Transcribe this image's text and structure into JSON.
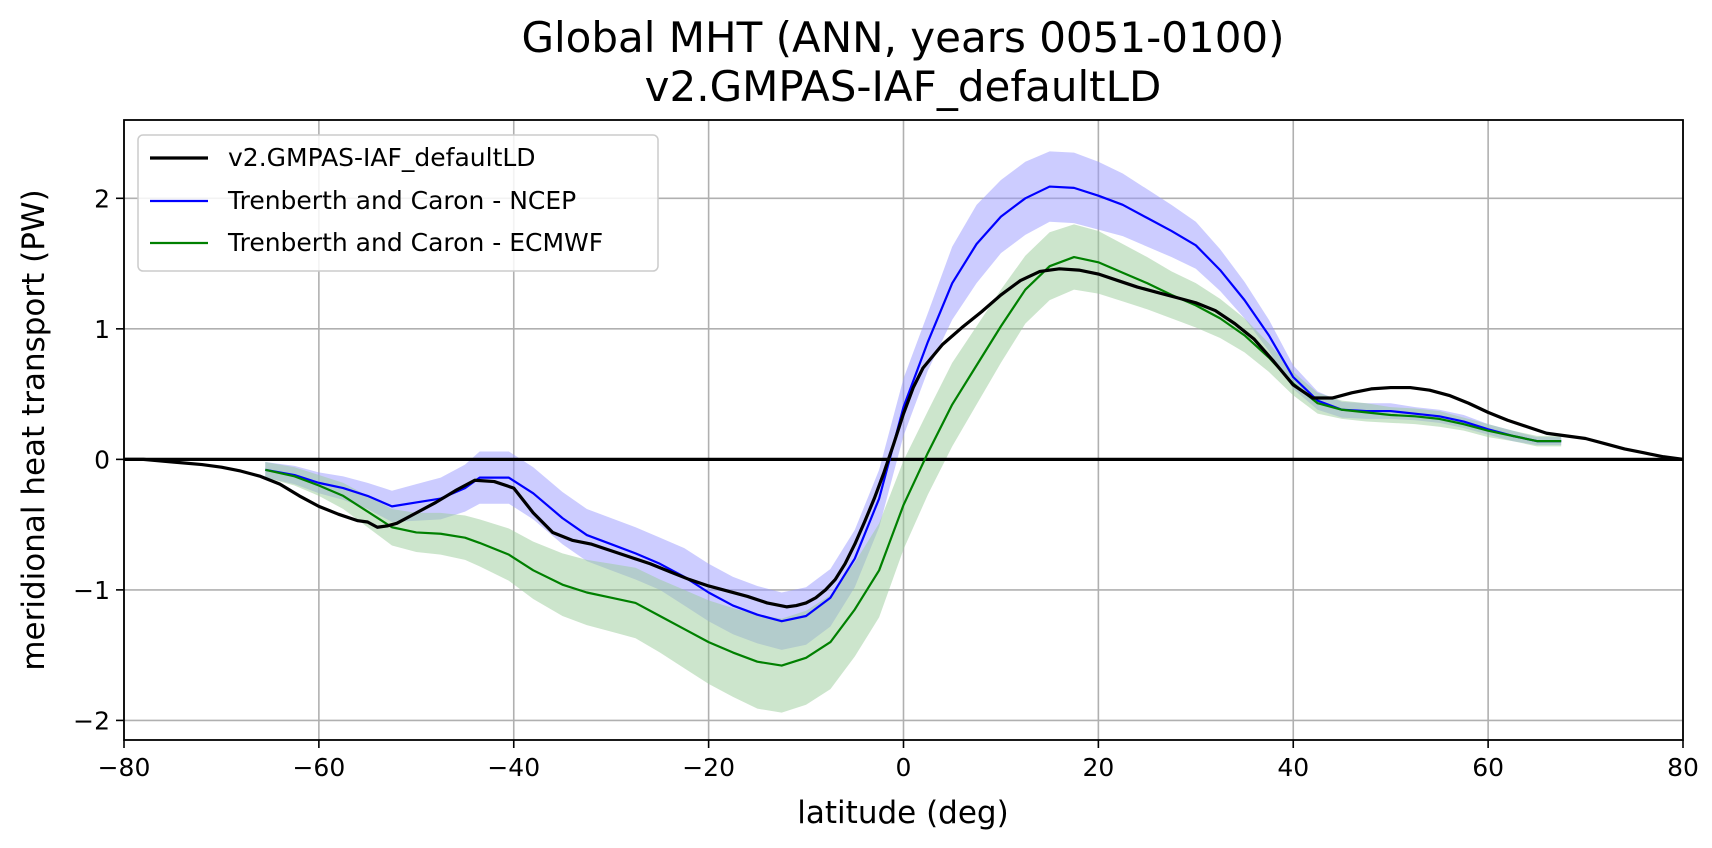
{
  "chart_data": {
    "type": "line",
    "title_line1": "Global MHT (ANN, years 0051-0100)",
    "title_line2": "v2.GMPAS-IAF_defaultLD",
    "xlabel": "latitude (deg)",
    "ylabel": "meridional heat transport (PW)",
    "xlim": [
      -80,
      80
    ],
    "ylim": [
      -2.15,
      2.6
    ],
    "xticks": [
      -80,
      -60,
      -40,
      -20,
      0,
      20,
      40,
      60,
      80
    ],
    "xtick_labels": [
      "−80",
      "−60",
      "−40",
      "−20",
      "0",
      "20",
      "40",
      "60",
      "80"
    ],
    "yticks": [
      -2,
      -1,
      0,
      1,
      2
    ],
    "ytick_labels": [
      "−2",
      "−1",
      "0",
      "1",
      "2"
    ],
    "grid": true,
    "legend_position": "upper-left",
    "series": [
      {
        "name": "v2.GMPAS-IAF_defaultLD",
        "color": "#000000",
        "x": [
          -80,
          -78,
          -75,
          -72,
          -70,
          -68,
          -66,
          -64,
          -62,
          -60,
          -58,
          -56,
          -55,
          -54,
          -53,
          -52,
          -50,
          -48,
          -46,
          -44,
          -42,
          -40,
          -38,
          -36,
          -34,
          -32,
          -30,
          -28,
          -26,
          -24,
          -22,
          -20,
          -18,
          -16,
          -14,
          -12,
          -11,
          -10,
          -9,
          -8,
          -7,
          -6,
          -5,
          -4,
          -3,
          -2,
          -1,
          0,
          1,
          2,
          4,
          6,
          8,
          10,
          12,
          14,
          16,
          18,
          20,
          22,
          24,
          26,
          28,
          30,
          32,
          34,
          36,
          38,
          40,
          42,
          44,
          46,
          48,
          50,
          52,
          54,
          56,
          58,
          60,
          62,
          64,
          66,
          68,
          70,
          72,
          74,
          76,
          78,
          80
        ],
        "values": [
          0.0,
          0.0,
          -0.02,
          -0.04,
          -0.06,
          -0.09,
          -0.13,
          -0.19,
          -0.28,
          -0.36,
          -0.42,
          -0.47,
          -0.48,
          -0.52,
          -0.51,
          -0.49,
          -0.41,
          -0.33,
          -0.24,
          -0.16,
          -0.17,
          -0.22,
          -0.41,
          -0.56,
          -0.62,
          -0.65,
          -0.7,
          -0.75,
          -0.8,
          -0.86,
          -0.92,
          -0.97,
          -1.01,
          -1.05,
          -1.1,
          -1.13,
          -1.12,
          -1.1,
          -1.06,
          -1.0,
          -0.92,
          -0.8,
          -0.65,
          -0.48,
          -0.3,
          -0.1,
          0.12,
          0.35,
          0.55,
          0.7,
          0.88,
          1.01,
          1.13,
          1.26,
          1.37,
          1.44,
          1.46,
          1.45,
          1.42,
          1.37,
          1.32,
          1.28,
          1.24,
          1.2,
          1.14,
          1.04,
          0.92,
          0.75,
          0.57,
          0.47,
          0.47,
          0.51,
          0.54,
          0.55,
          0.55,
          0.53,
          0.49,
          0.43,
          0.36,
          0.3,
          0.25,
          0.2,
          0.18,
          0.16,
          0.12,
          0.08,
          0.05,
          0.02,
          0.0
        ]
      },
      {
        "name": "Trenberth and Caron - NCEP",
        "color": "#0000ff",
        "band_color": "#9999ff",
        "x": [
          -65.5,
          -62.5,
          -60,
          -57.5,
          -55,
          -52.5,
          -50,
          -47.5,
          -45,
          -43.5,
          -40.5,
          -38,
          -35,
          -32.5,
          -30,
          -27.5,
          -25,
          -22.5,
          -20,
          -17.5,
          -15,
          -12.5,
          -10,
          -7.5,
          -5,
          -2.5,
          0,
          2.5,
          5,
          7.5,
          10,
          12.5,
          15,
          17.5,
          20,
          22.5,
          25,
          27.5,
          30,
          32.5,
          35,
          37.5,
          40,
          42.5,
          45,
          47.5,
          50,
          52.5,
          55,
          57.5,
          60,
          62.5,
          65,
          67.5
        ],
        "values": [
          -0.08,
          -0.12,
          -0.18,
          -0.22,
          -0.28,
          -0.36,
          -0.33,
          -0.3,
          -0.22,
          -0.14,
          -0.14,
          -0.26,
          -0.45,
          -0.58,
          -0.65,
          -0.72,
          -0.8,
          -0.9,
          -1.02,
          -1.12,
          -1.19,
          -1.24,
          -1.2,
          -1.06,
          -0.76,
          -0.3,
          0.4,
          0.9,
          1.35,
          1.65,
          1.86,
          2.0,
          2.09,
          2.08,
          2.02,
          1.95,
          1.85,
          1.75,
          1.64,
          1.45,
          1.22,
          0.95,
          0.63,
          0.45,
          0.38,
          0.37,
          0.37,
          0.35,
          0.33,
          0.29,
          0.23,
          0.18,
          0.14,
          0.14
        ],
        "spread": [
          0.06,
          0.07,
          0.08,
          0.09,
          0.1,
          0.12,
          0.14,
          0.16,
          0.18,
          0.2,
          0.2,
          0.2,
          0.2,
          0.2,
          0.2,
          0.2,
          0.2,
          0.22,
          0.22,
          0.22,
          0.22,
          0.22,
          0.22,
          0.22,
          0.22,
          0.22,
          0.22,
          0.22,
          0.28,
          0.3,
          0.28,
          0.28,
          0.27,
          0.27,
          0.26,
          0.24,
          0.22,
          0.2,
          0.18,
          0.16,
          0.14,
          0.12,
          0.09,
          0.07,
          0.06,
          0.06,
          0.06,
          0.05,
          0.05,
          0.05,
          0.04,
          0.04,
          0.03,
          0.03
        ]
      },
      {
        "name": "Trenberth and Caron - ECMWF",
        "color": "#008000",
        "band_color": "#99cc99",
        "x": [
          -65.5,
          -62.5,
          -60,
          -57.5,
          -55,
          -52.5,
          -50,
          -47.5,
          -45,
          -43.5,
          -40.5,
          -38,
          -35,
          -32.5,
          -30,
          -27.5,
          -25,
          -22.5,
          -20,
          -17.5,
          -15,
          -12.5,
          -10,
          -7.5,
          -5,
          -2.5,
          0,
          2.5,
          5,
          7.5,
          10,
          12.5,
          15,
          17.5,
          20,
          22.5,
          25,
          27.5,
          30,
          32.5,
          35,
          37.5,
          40,
          42.5,
          45,
          47.5,
          50,
          52.5,
          55,
          57.5,
          60,
          62.5,
          65,
          67.5
        ],
        "values": [
          -0.08,
          -0.13,
          -0.2,
          -0.28,
          -0.4,
          -0.52,
          -0.56,
          -0.57,
          -0.6,
          -0.64,
          -0.73,
          -0.85,
          -0.96,
          -1.02,
          -1.06,
          -1.1,
          -1.2,
          -1.3,
          -1.4,
          -1.48,
          -1.55,
          -1.58,
          -1.52,
          -1.4,
          -1.15,
          -0.85,
          -0.35,
          0.05,
          0.42,
          0.72,
          1.02,
          1.3,
          1.48,
          1.55,
          1.51,
          1.43,
          1.35,
          1.26,
          1.18,
          1.08,
          0.95,
          0.78,
          0.58,
          0.43,
          0.38,
          0.36,
          0.34,
          0.33,
          0.31,
          0.27,
          0.22,
          0.18,
          0.14,
          0.14
        ],
        "spread": [
          0.06,
          0.07,
          0.08,
          0.1,
          0.12,
          0.14,
          0.15,
          0.16,
          0.17,
          0.18,
          0.2,
          0.22,
          0.24,
          0.25,
          0.26,
          0.27,
          0.28,
          0.3,
          0.32,
          0.34,
          0.36,
          0.36,
          0.36,
          0.36,
          0.36,
          0.36,
          0.34,
          0.32,
          0.32,
          0.3,
          0.28,
          0.26,
          0.26,
          0.25,
          0.24,
          0.22,
          0.2,
          0.18,
          0.17,
          0.15,
          0.13,
          0.11,
          0.09,
          0.08,
          0.07,
          0.07,
          0.06,
          0.06,
          0.06,
          0.05,
          0.05,
          0.04,
          0.04,
          0.04
        ]
      }
    ]
  }
}
